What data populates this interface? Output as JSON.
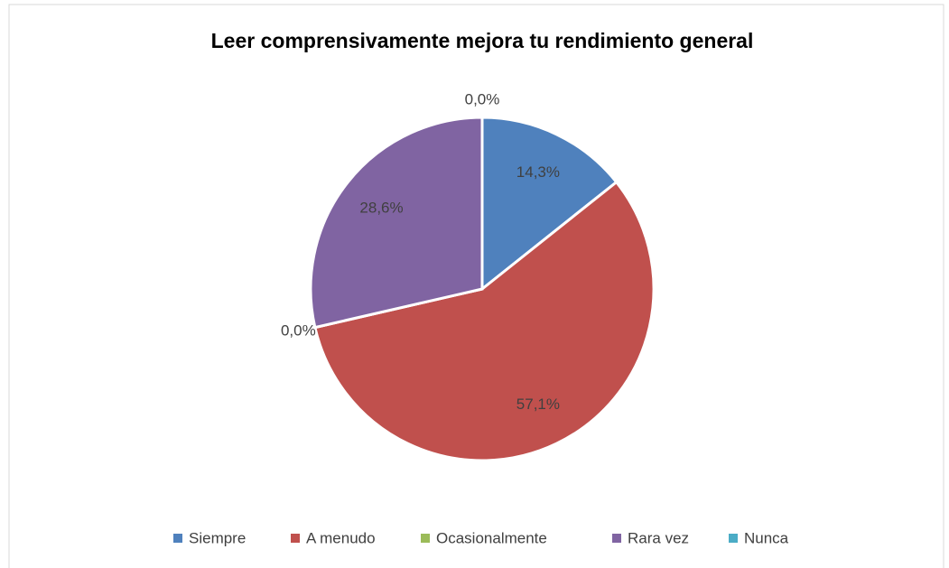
{
  "chart_data": {
    "type": "pie",
    "title": "Leer comprensivamente mejora tu rendimiento general",
    "categories": [
      "Siempre",
      "A menudo",
      "Ocasionalmente",
      "Rara vez",
      "Nunca"
    ],
    "values": [
      14.3,
      57.1,
      0,
      28.6,
      0
    ],
    "value_labels": [
      "14,3%",
      "57,1%",
      "0,0%",
      "28,6%",
      "0,0%"
    ],
    "colors": [
      "#4f81bd",
      "#c0504d",
      "#9bbb59",
      "#8064a2",
      "#4bacc6"
    ],
    "legend": "bottom"
  }
}
